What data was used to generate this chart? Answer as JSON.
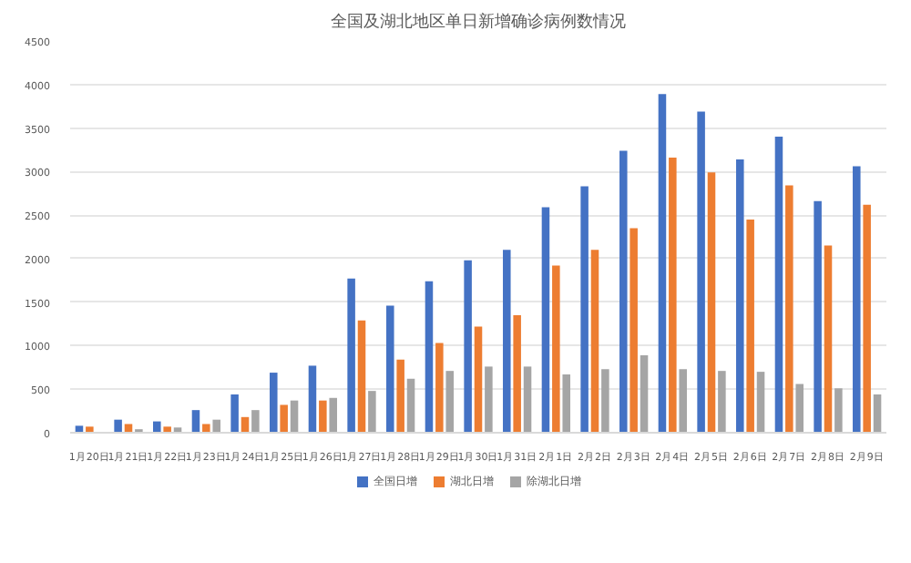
{
  "chart_data": {
    "type": "bar",
    "title": "全国及湖北地区单日新增确诊病例数情况",
    "categories": [
      "1月20日",
      "1月21日",
      "1月22日",
      "1月23日",
      "1月24日",
      "1月25日",
      "1月26日",
      "1月27日",
      "1月28日",
      "1月29日",
      "1月30日",
      "1月31日",
      "2月1日",
      "2月2日",
      "2月3日",
      "2月4日",
      "2月5日",
      "2月6日",
      "2月7日",
      "2月8日",
      "2月9日"
    ],
    "series": [
      {
        "name": "全国日增",
        "color": "#4472c4",
        "values": [
          80,
          150,
          130,
          260,
          440,
          690,
          770,
          1770,
          1460,
          1740,
          1980,
          2100,
          2590,
          2830,
          3240,
          3890,
          3690,
          3140,
          3400,
          2660,
          3060
        ]
      },
      {
        "name": "湖北日增",
        "color": "#ed7d31",
        "values": [
          70,
          100,
          70,
          100,
          180,
          320,
          370,
          1290,
          840,
          1030,
          1220,
          1350,
          1920,
          2100,
          2350,
          3160,
          2990,
          2450,
          2840,
          2150,
          2620
        ]
      },
      {
        "name": "除湖北日增",
        "color": "#a5a5a5",
        "values": [
          10,
          40,
          60,
          150,
          260,
          370,
          400,
          480,
          620,
          710,
          760,
          760,
          670,
          730,
          890,
          730,
          710,
          700,
          560,
          510,
          440
        ]
      }
    ],
    "ylim": [
      0,
      4500
    ],
    "yticks": [
      0,
      500,
      1000,
      1500,
      2000,
      2500,
      3000,
      3500,
      4000,
      4500
    ],
    "grid": "y",
    "legend": "bottom"
  }
}
